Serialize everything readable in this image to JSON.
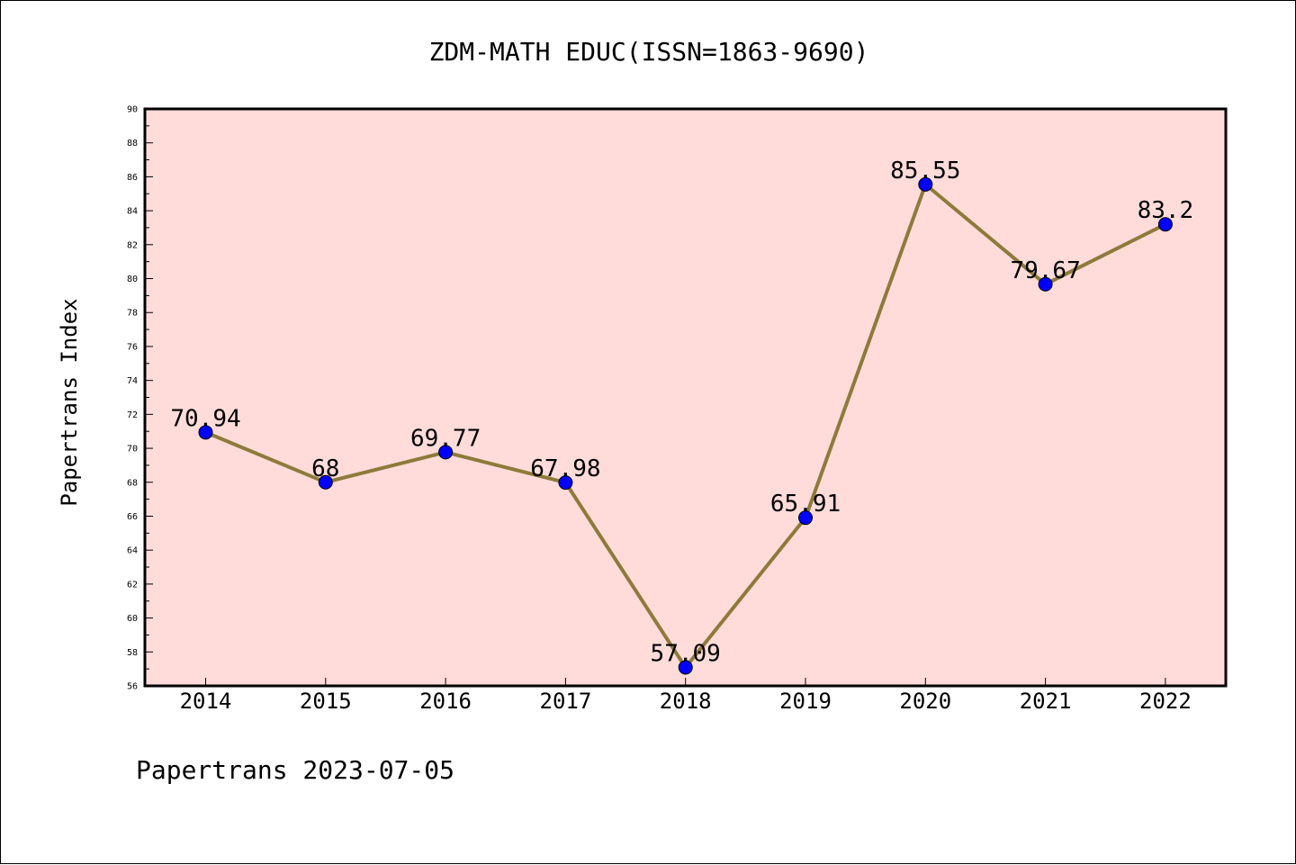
{
  "colors": {
    "plot_background": "#FFDCDA",
    "line": "#8E7A3A",
    "marker": "#0000FF",
    "axis": "#000000"
  },
  "footer": "Papertrans 2023-07-05",
  "chart_data": {
    "type": "line",
    "title": "ZDM-MATH EDUC(ISSN=1863-9690)",
    "xlabel": "",
    "ylabel": "Papertrans Index",
    "categories": [
      "2014",
      "2015",
      "2016",
      "2017",
      "2018",
      "2019",
      "2020",
      "2021",
      "2022"
    ],
    "series": [
      {
        "values": [
          70.94,
          68,
          69.77,
          67.98,
          57.09,
          65.91,
          85.55,
          79.67,
          83.2
        ],
        "labels": [
          "70.94",
          "68",
          "69.77",
          "67.98",
          "57.09",
          "65.91",
          "85.55",
          "79.67",
          "83.2"
        ]
      }
    ],
    "ylim": [
      56,
      90
    ],
    "yticks": [
      "56",
      "58",
      "60",
      "62",
      "64",
      "66",
      "68",
      "70",
      "72",
      "74",
      "76",
      "78",
      "80",
      "82",
      "84",
      "86",
      "88",
      "90"
    ],
    "grid": false,
    "legend": "none",
    "marker": "circle"
  }
}
